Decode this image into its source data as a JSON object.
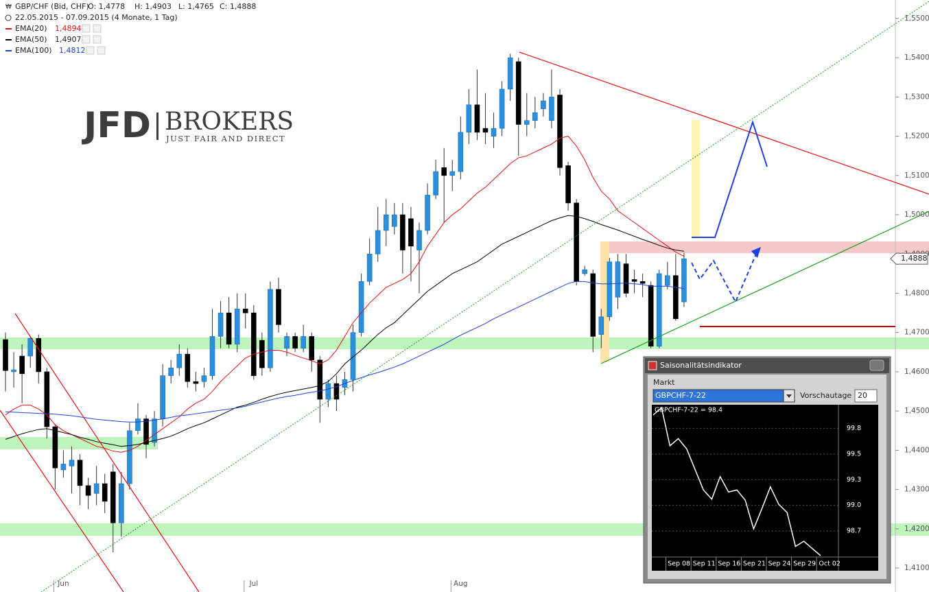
{
  "logo": {
    "left": "JFD",
    "right": "BROKERS",
    "tagline": "JUST FAIR AND DIRECT"
  },
  "chart_data": [
    {
      "type": "candlestick",
      "title": "GBP/CHF (Bid, CHF)",
      "ohlc_labels": [
        "O: 1,4778",
        "H: 1,4903",
        "L: 1,4765",
        "C: 1,4888"
      ],
      "period": "22.05.2015 - 07.09.2015 (4 Monate, 1 Tag)",
      "last_price_label": "1,4888",
      "up_color": "#2b8fde",
      "down_color": "#000000",
      "categories": [
        null,
        null,
        null,
        null,
        null,
        null,
        null,
        "Jun",
        null,
        null,
        null,
        null,
        null,
        null,
        null,
        null,
        null,
        null,
        null,
        null,
        null,
        null,
        null,
        null,
        null,
        null,
        null,
        null,
        null,
        null,
        "Jul",
        null,
        null,
        null,
        null,
        null,
        null,
        null,
        null,
        null,
        null,
        null,
        null,
        null,
        null,
        null,
        null,
        null,
        null,
        null,
        null,
        null,
        null,
        null,
        null,
        "Aug",
        null,
        null,
        null,
        null,
        null,
        null,
        null,
        null,
        null,
        null,
        null,
        null,
        null,
        null,
        null,
        null,
        null,
        null,
        null,
        null,
        null,
        null,
        null,
        null,
        null,
        null,
        null
      ],
      "open": [
        1.4682,
        1.46,
        1.464,
        1.464,
        1.4685,
        1.46,
        1.446,
        1.435,
        1.436,
        1.4375,
        1.431,
        1.429,
        1.4315,
        1.4345,
        1.4215,
        1.4315,
        1.445,
        1.448,
        1.442,
        1.448,
        1.459,
        1.461,
        1.4645,
        1.4575,
        1.4575,
        1.459,
        1.469,
        1.475,
        1.467,
        1.476,
        1.475,
        1.468,
        1.461,
        1.481,
        1.466,
        1.469,
        1.466,
        1.469,
        1.463,
        1.453,
        1.457,
        1.456,
        1.458,
        1.47,
        1.483,
        1.49,
        1.496,
        1.497,
        1.5,
        1.499,
        1.491,
        1.496,
        1.505,
        1.512,
        1.51,
        1.511,
        1.521,
        1.528,
        1.522,
        1.52,
        1.522,
        1.532,
        1.539,
        1.523,
        1.524,
        1.527,
        1.524,
        1.5305,
        1.5125,
        1.503,
        1.485,
        1.485,
        1.4695,
        1.474,
        1.479,
        1.4875,
        1.4835,
        1.483,
        1.482,
        1.4665,
        1.482,
        1.4845,
        1.4778
      ],
      "high": [
        1.47,
        1.465,
        1.467,
        1.469,
        1.4695,
        1.461,
        1.4465,
        1.44,
        1.441,
        1.439,
        1.433,
        1.436,
        1.434,
        1.4365,
        1.4345,
        1.447,
        1.452,
        1.449,
        1.45,
        1.462,
        1.463,
        1.467,
        1.466,
        1.46,
        1.461,
        1.476,
        1.478,
        1.479,
        1.48,
        1.48,
        1.477,
        1.47,
        1.483,
        1.484,
        1.47,
        1.47,
        1.472,
        1.47,
        1.464,
        1.458,
        1.459,
        1.46,
        1.472,
        1.485,
        1.494,
        1.502,
        1.504,
        1.503,
        1.503,
        1.502,
        1.498,
        1.508,
        1.514,
        1.517,
        1.514,
        1.525,
        1.532,
        1.537,
        1.531,
        1.526,
        1.534,
        1.541,
        1.54,
        1.531,
        1.53,
        1.531,
        1.537,
        1.532,
        1.5135,
        1.504,
        1.487,
        1.486,
        1.476,
        1.489,
        1.49,
        1.49,
        1.486,
        1.485,
        1.483,
        1.486,
        1.488,
        1.49,
        1.4903
      ],
      "low": [
        1.455,
        1.456,
        1.452,
        1.461,
        1.457,
        1.443,
        1.43,
        1.433,
        1.429,
        1.426,
        1.425,
        1.426,
        1.424,
        1.414,
        1.418,
        1.43,
        1.444,
        1.438,
        1.441,
        1.446,
        1.457,
        1.459,
        1.456,
        1.455,
        1.456,
        1.458,
        1.466,
        1.466,
        1.465,
        1.471,
        1.458,
        1.459,
        1.46,
        1.47,
        1.464,
        1.465,
        1.465,
        1.46,
        1.447,
        1.451,
        1.45,
        1.454,
        1.455,
        1.469,
        1.482,
        1.488,
        1.492,
        1.495,
        1.485,
        1.483,
        1.48,
        1.495,
        1.504,
        1.498,
        1.506,
        1.509,
        1.518,
        1.519,
        1.518,
        1.517,
        1.52,
        1.529,
        1.515,
        1.52,
        1.522,
        1.525,
        1.522,
        1.51,
        1.501,
        1.482,
        1.4845,
        1.465,
        1.466,
        1.473,
        1.476,
        1.479,
        1.48,
        1.479,
        1.466,
        1.466,
        1.481,
        1.473,
        1.4765
      ],
      "close": [
        1.4603,
        1.4605,
        1.4595,
        1.4685,
        1.46,
        1.446,
        1.4355,
        1.4365,
        1.4375,
        1.431,
        1.4285,
        1.4315,
        1.427,
        1.4215,
        1.4315,
        1.445,
        1.448,
        1.4415,
        1.448,
        1.459,
        1.461,
        1.4645,
        1.4575,
        1.457,
        1.459,
        1.469,
        1.475,
        1.467,
        1.476,
        1.475,
        1.459,
        1.461,
        1.481,
        1.472,
        1.469,
        1.466,
        1.469,
        1.463,
        1.453,
        1.457,
        1.453,
        1.458,
        1.47,
        1.483,
        1.49,
        1.496,
        1.5,
        1.5,
        1.491,
        1.492,
        1.496,
        1.505,
        1.511,
        1.51,
        1.511,
        1.521,
        1.528,
        1.521,
        1.521,
        1.522,
        1.532,
        1.54,
        1.523,
        1.524,
        1.526,
        1.529,
        1.53,
        1.512,
        1.503,
        1.483,
        1.486,
        1.469,
        1.474,
        1.488,
        1.488,
        1.48,
        1.483,
        1.4825,
        1.4665,
        1.485,
        1.4845,
        1.4735,
        1.4888
      ],
      "series": [
        {
          "name": "EMA(20)",
          "color": "#e01010",
          "legend_value": "1,4894",
          "values": [
            1.449,
            1.4505,
            1.4515,
            1.4515,
            1.4505,
            1.449,
            1.4465,
            1.445,
            1.444,
            1.443,
            1.442,
            1.441,
            1.4405,
            1.4398,
            1.4395,
            1.44,
            1.441,
            1.4425,
            1.444,
            1.4455,
            1.447,
            1.4485,
            1.4505,
            1.452,
            1.453,
            1.455,
            1.4575,
            1.4595,
            1.4615,
            1.4635,
            1.4645,
            1.465,
            1.4655,
            1.4655,
            1.465,
            1.4642,
            1.4635,
            1.4628,
            1.462,
            1.463,
            1.4655,
            1.469,
            1.4725,
            1.475,
            1.4775,
            1.4795,
            1.4815,
            1.4825,
            1.4835,
            1.485,
            1.488,
            1.492,
            1.495,
            1.498,
            1.5,
            1.5015,
            1.5035,
            1.5055,
            1.507,
            1.509,
            1.511,
            1.513,
            1.5145,
            1.515,
            1.516,
            1.517,
            1.518,
            1.5195,
            1.52,
            1.5175,
            1.514,
            1.5095,
            1.506,
            1.504,
            1.501,
            1.4995,
            1.498,
            1.4965,
            1.495,
            1.4935,
            1.492,
            1.4905,
            1.4894
          ]
        },
        {
          "name": "EMA(50)",
          "color": "#000000",
          "legend_value": "1,4907",
          "values": [
            1.4428,
            1.4435,
            1.4442,
            1.4448,
            1.4453,
            1.4455,
            1.445,
            1.4445,
            1.444,
            1.4433,
            1.4428,
            1.4422,
            1.4418,
            1.4414,
            1.441,
            1.4412,
            1.4415,
            1.442,
            1.4425,
            1.443,
            1.4436,
            1.4445,
            1.4455,
            1.4463,
            1.447,
            1.448,
            1.449,
            1.45,
            1.451,
            1.4515,
            1.4522,
            1.453,
            1.4537,
            1.4543,
            1.4548,
            1.4552,
            1.4556,
            1.456,
            1.4565,
            1.4575,
            1.4595,
            1.462,
            1.4638,
            1.4655,
            1.4675,
            1.4695,
            1.4712,
            1.4725,
            1.4745,
            1.4765,
            1.4785,
            1.4805,
            1.482,
            1.4835,
            1.485,
            1.486,
            1.487,
            1.488,
            1.4895,
            1.491,
            1.4925,
            1.4935,
            1.4945,
            1.4955,
            1.4965,
            1.4975,
            1.4985,
            1.4992,
            1.4998,
            1.4996,
            1.499,
            1.4983,
            1.4975,
            1.4968,
            1.4961,
            1.4953,
            1.4945,
            1.4937,
            1.493,
            1.4922,
            1.4915,
            1.491,
            1.4907
          ]
        },
        {
          "name": "EMA(100)",
          "color": "#1f3fd8",
          "legend_value": "1,4812",
          "values": [
            1.4498,
            1.4497,
            1.4496,
            1.4495,
            1.4494,
            1.4493,
            1.4492,
            1.449,
            1.4488,
            1.4485,
            1.4482,
            1.4479,
            1.4477,
            1.4475,
            1.4473,
            1.4472,
            1.4472,
            1.4474,
            1.4477,
            1.448,
            1.4484,
            1.4488,
            1.449,
            1.4493,
            1.4496,
            1.4499,
            1.4502,
            1.4505,
            1.4508,
            1.4512,
            1.4518,
            1.4523,
            1.4528,
            1.4533,
            1.4537,
            1.454,
            1.4544,
            1.4548,
            1.4551,
            1.4556,
            1.4562,
            1.457,
            1.4578,
            1.4585,
            1.4592,
            1.4598,
            1.4605,
            1.4612,
            1.462,
            1.463,
            1.464,
            1.465,
            1.466,
            1.467,
            1.4682,
            1.4693,
            1.4703,
            1.4713,
            1.4723,
            1.4735,
            1.4745,
            1.4755,
            1.4765,
            1.4775,
            1.4785,
            1.4795,
            1.4805,
            1.4815,
            1.4825,
            1.483,
            1.483,
            1.4826,
            1.4824,
            1.4824,
            1.4825,
            1.4826,
            1.4824,
            1.4822,
            1.4818,
            1.4818,
            1.4818,
            1.4815,
            1.4812
          ]
        }
      ],
      "ylim": [
        1.4039,
        1.5547
      ],
      "yticks": [
        {
          "value": 1.41,
          "label": "1,4100"
        },
        {
          "value": 1.42,
          "label": "1,4200"
        },
        {
          "value": 1.43,
          "label": "1,4300"
        },
        {
          "value": 1.44,
          "label": "1,4400"
        },
        {
          "value": 1.45,
          "label": "1,4500"
        },
        {
          "value": 1.46,
          "label": "1,4600"
        },
        {
          "value": 1.47,
          "label": "1,4700"
        },
        {
          "value": 1.48,
          "label": "1,4800"
        },
        {
          "value": 1.49,
          "label": "1,4900"
        },
        {
          "value": 1.5,
          "label": "1,5000"
        },
        {
          "value": 1.51,
          "label": "1,5100"
        },
        {
          "value": 1.52,
          "label": "1,5200"
        },
        {
          "value": 1.53,
          "label": "1,5300"
        },
        {
          "value": 1.54,
          "label": "1,5400"
        },
        {
          "value": 1.55,
          "label": "1,5500"
        }
      ]
    },
    {
      "type": "line",
      "title": "Saisonalitätsindikator",
      "market_label": "Markt",
      "market": "GBPCHF-7-22",
      "forecast_label": "Vorschautage",
      "forecast_days": 20,
      "series_label": "GBPCHF-7-22 = 98.4",
      "color": "#ffffff",
      "categories": [
        null,
        null,
        null,
        "Sep 08",
        null,
        null,
        "Sep 11",
        null,
        null,
        "Sep 16",
        null,
        null,
        "Sep 21",
        null,
        null,
        "Sep 24",
        null,
        null,
        "Sep 29",
        null,
        null,
        "Oct 02"
      ],
      "values": [
        99.88,
        99.95,
        99.58,
        99.65,
        99.55,
        99.35,
        99.15,
        99.06,
        99.28,
        99.13,
        99.15,
        99.05,
        98.77,
        98.97,
        99.18,
        99.01,
        98.93,
        98.6,
        98.65,
        98.58,
        98.51,
        null
      ],
      "ylim": [
        98.51,
        99.98
      ],
      "yticks": [
        {
          "value": 98.75,
          "label": "98.7"
        },
        {
          "value": 99.0,
          "label": "99.0"
        },
        {
          "value": 99.25,
          "label": "99.3"
        },
        {
          "value": 99.5,
          "label": "99.5"
        },
        {
          "value": 99.75,
          "label": "99.8"
        }
      ]
    }
  ]
}
